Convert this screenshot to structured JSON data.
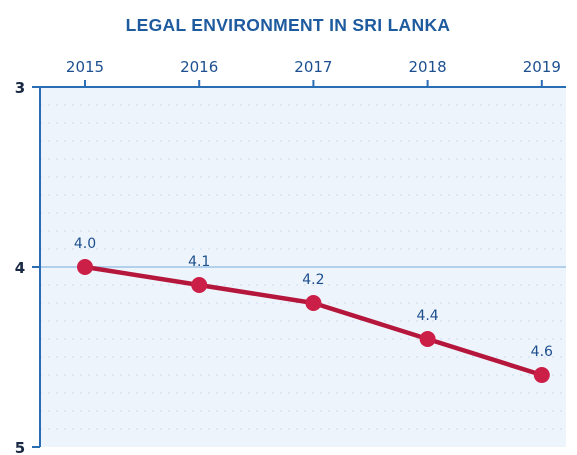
{
  "chart_data": {
    "type": "line",
    "title": "LEGAL ENVIRONMENT IN SRI LANKA",
    "categories": [
      "2015",
      "2016",
      "2017",
      "2018",
      "2019"
    ],
    "values": [
      4.0,
      4.1,
      4.2,
      4.4,
      4.6
    ],
    "data_labels": [
      "4.0",
      "4.1",
      "4.2",
      "4.4",
      "4.6"
    ],
    "y_ticks": [
      3,
      4,
      5
    ],
    "y_tick_labels": [
      "3",
      "4",
      "5"
    ],
    "ylim": [
      3,
      5
    ],
    "y_inverted": true,
    "x_axis_position": "top",
    "grid": true,
    "colors": {
      "title": "#1d5a9e",
      "line": "#b5173c",
      "marker": "#cc1f48",
      "plot_background": "#eef4fb",
      "axis": "#2a6db3",
      "grid_major": "#9cc3e6",
      "grid_minor": "#c9dcf0"
    }
  }
}
